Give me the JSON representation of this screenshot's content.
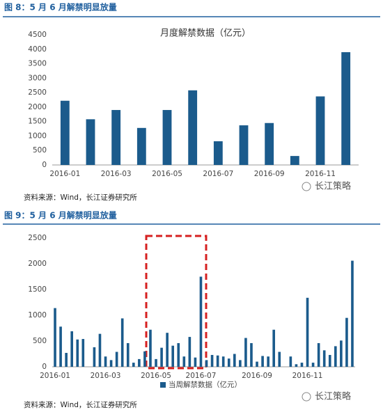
{
  "figures": [
    {
      "caption": "图 8：5 月 6 月解禁明显放量",
      "source": "资料来源：Wind，长江证券研究所",
      "watermark": "长江策略"
    },
    {
      "caption": "图 9：5 月 6 月解禁明显放量",
      "source": "资料来源：Wind，长江证券研究所",
      "watermark": "长江策略"
    }
  ],
  "chart_data": [
    {
      "type": "bar",
      "title": "月度解禁数据（亿元）",
      "categories": [
        "2016-01",
        null,
        "2016-03",
        null,
        "2016-05",
        null,
        "2016-07",
        null,
        "2016-09",
        null,
        "2016-11",
        null
      ],
      "values": [
        2220,
        1580,
        1900,
        1280,
        1900,
        2580,
        820,
        1370,
        1450,
        310,
        2370,
        3900
      ],
      "color": "#1b5b8c",
      "ylim": [
        0,
        4500
      ],
      "yticks": [
        0,
        500,
        1000,
        1500,
        2000,
        2500,
        3000,
        3500,
        4000,
        4500
      ],
      "grid": false
    },
    {
      "type": "bar",
      "categories": [
        "2016-01",
        null,
        null,
        null,
        null,
        null,
        null,
        null,
        null,
        "2016-03",
        null,
        null,
        null,
        null,
        null,
        null,
        null,
        null,
        "2016-05",
        null,
        null,
        null,
        null,
        null,
        null,
        null,
        "2016-07",
        null,
        null,
        null,
        null,
        null,
        null,
        null,
        null,
        null,
        "2016-09",
        null,
        null,
        null,
        null,
        null,
        null,
        null,
        null,
        "2016-11",
        null,
        null,
        null,
        null,
        null,
        null,
        null,
        null
      ],
      "series": [
        {
          "name": "当周解禁数据（亿元）",
          "color": "#1b5b8c",
          "values": [
            1140,
            780,
            270,
            690,
            530,
            540,
            0,
            380,
            640,
            200,
            130,
            290,
            940,
            460,
            80,
            150,
            300,
            720,
            150,
            370,
            660,
            410,
            460,
            200,
            580,
            180,
            1750,
            130,
            230,
            220,
            200,
            160,
            250,
            130,
            560,
            460,
            100,
            210,
            200,
            720,
            290,
            0,
            200,
            50,
            80,
            1340,
            80,
            460,
            320,
            230,
            400,
            510,
            950,
            2060
          ]
        }
      ],
      "ylim": [
        0,
        2500
      ],
      "yticks": [
        0,
        500,
        1000,
        1500,
        2000,
        2500
      ],
      "grid": false,
      "legend": "bottom"
    }
  ]
}
